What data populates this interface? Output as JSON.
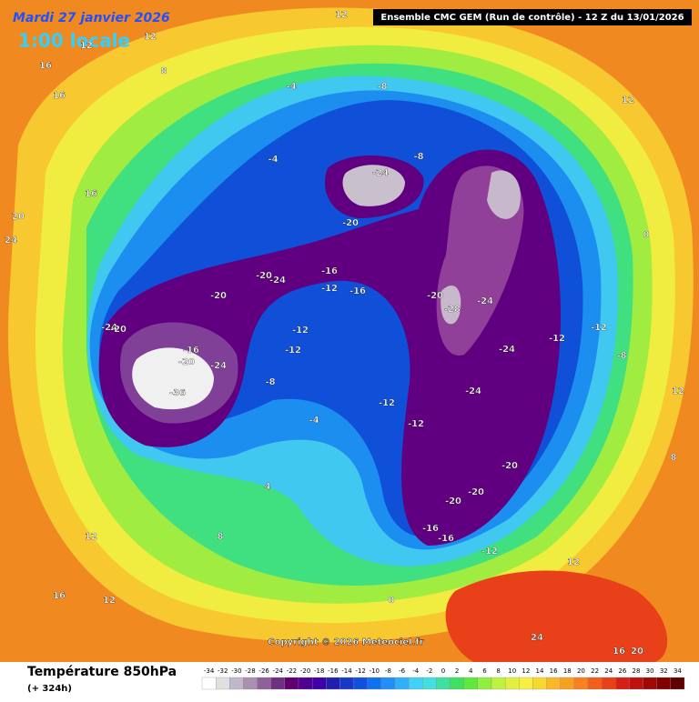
{
  "header": {
    "date": "Mardi 27 janvier 2026",
    "time": "1:00 locale",
    "run": "Ensemble CMC GEM  (Run de contrôle)  - 12 Z du 13/01/2026"
  },
  "copyright": "Copyright © 2026 Meteociel.fr",
  "footer": {
    "title": "Température 850hPa",
    "lead": "(+ 324h)"
  },
  "legend": {
    "values": [
      -34,
      -32,
      -30,
      -28,
      -26,
      -24,
      -22,
      -20,
      -18,
      -16,
      -14,
      -12,
      -10,
      -8,
      -6,
      -4,
      -2,
      0,
      2,
      4,
      6,
      8,
      10,
      12,
      14,
      16,
      18,
      20,
      22,
      24,
      26,
      28,
      30,
      32,
      34
    ],
    "colors": [
      "#ffffff",
      "#e0e0e0",
      "#c0b8c8",
      "#a890b0",
      "#906098",
      "#703080",
      "#600070",
      "#500090",
      "#4000a8",
      "#2020b0",
      "#1838c8",
      "#1050e0",
      "#1070f0",
      "#2090f8",
      "#30b0f8",
      "#40d0f8",
      "#40e0e0",
      "#40e0a0",
      "#40e060",
      "#60e840",
      "#90f040",
      "#c0f040",
      "#e0f040",
      "#f8f040",
      "#f8d830",
      "#f8b828",
      "#f8a020",
      "#f88020",
      "#f06018",
      "#e84018",
      "#d82010",
      "#c01010",
      "#a00808",
      "#800000",
      "#600000"
    ]
  },
  "map": {
    "labels": [
      "-24",
      "-20",
      "-16",
      "-20",
      "-24",
      "-36",
      "-20",
      "-20",
      "-24",
      "-16",
      "-12",
      "-16",
      "-12",
      "-12",
      "-8",
      "-4",
      "-12",
      "-12",
      "-20",
      "-24",
      "-28",
      "-24",
      "-24",
      "-20",
      "-20",
      "-20",
      "-16",
      "-16",
      "-12",
      "-12",
      "-12",
      "-8",
      "-8",
      "-8",
      "-4",
      "-4",
      "-20",
      "-24",
      "8",
      "16",
      "16",
      "16",
      "20",
      "24",
      "12",
      "12",
      "16",
      "8",
      "4",
      "24",
      "20",
      "16",
      "12",
      "12",
      "8",
      "12",
      "12",
      "12",
      "12",
      "0",
      "0"
    ]
  }
}
